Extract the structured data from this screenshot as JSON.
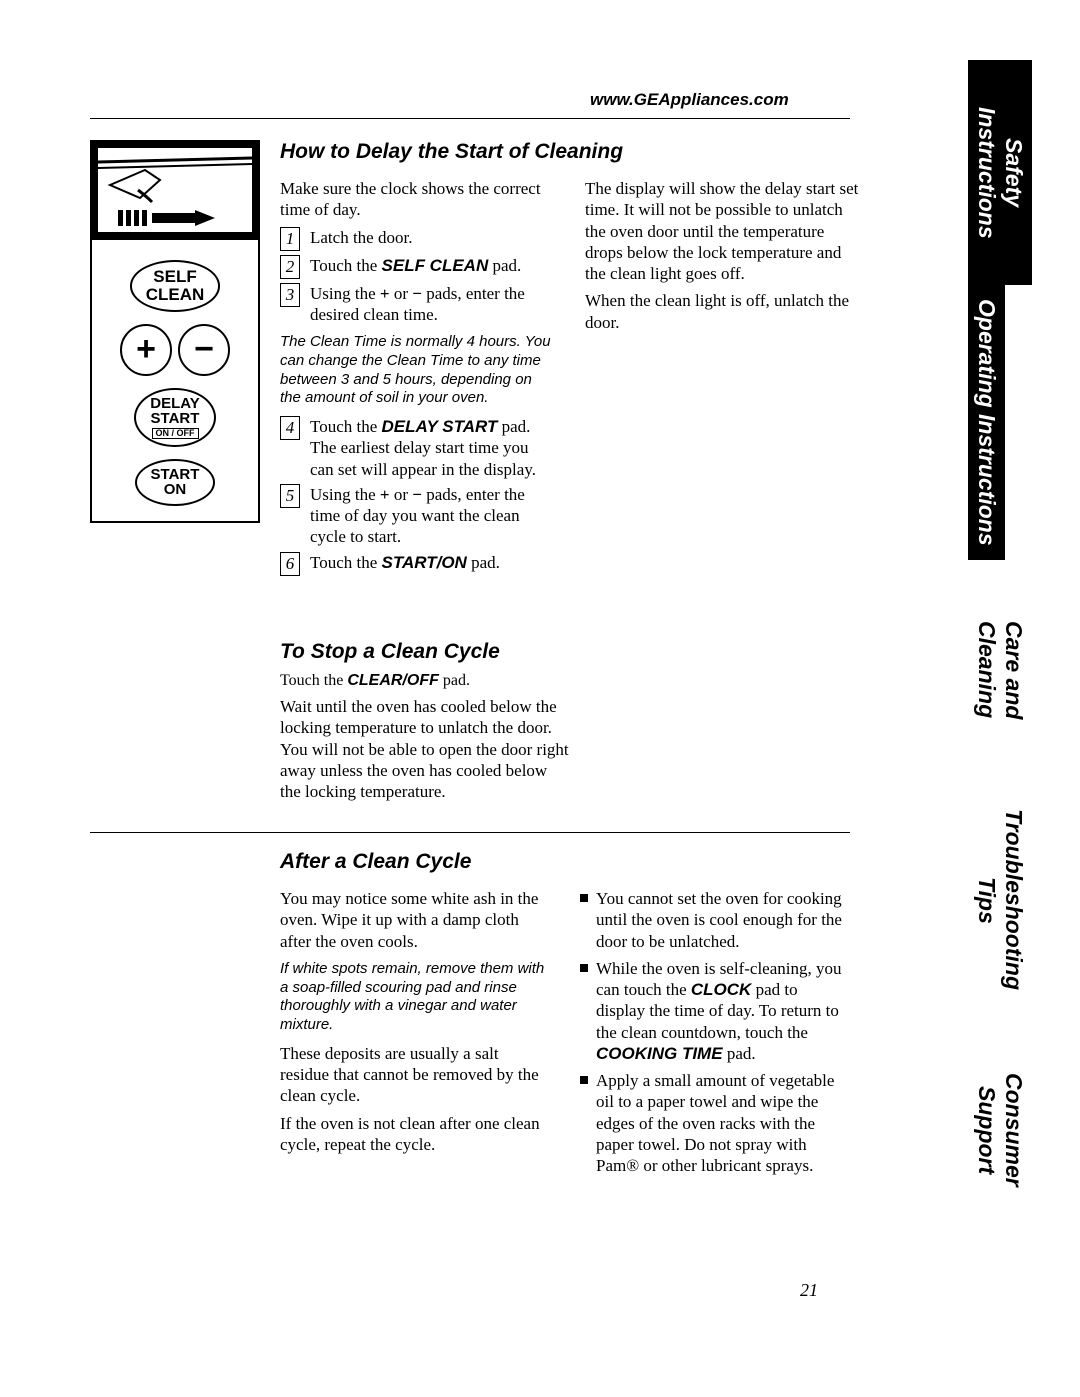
{
  "url": "www.GEAppliances.com",
  "page_number": "21",
  "tabs": {
    "t1": "Safety Instructions",
    "t2": "Operating Instructions",
    "t3": "Care and Cleaning",
    "t4": "Troubleshooting Tips",
    "t5": "Consumer Support"
  },
  "illus": {
    "self_clean": "SELF\nCLEAN",
    "plus": "+",
    "minus": "−",
    "delay_start": "DELAY\nSTART",
    "on_off": "ON / OFF",
    "start_on": "START\nON"
  },
  "s1": {
    "title": "How to Delay the Start of Cleaning",
    "intro": "Make sure the clock shows the correct time of day.",
    "step1": "Latch the door.",
    "step2a": "Touch the ",
    "step2b": "SELF CLEAN",
    "step2c": " pad.",
    "step3a": "Using the ",
    "step3b": "+",
    "step3c": " or ",
    "step3d": "−",
    "step3e": " pads, enter the desired clean time.",
    "note": "The Clean Time is normally 4 hours. You can change the Clean Time to any time between 3 and 5 hours, depending on the amount of soil in your oven.",
    "step4a": "Touch the ",
    "step4b": "DELAY START",
    "step4c": " pad. The earliest delay start time you can set will appear in the display.",
    "step5a": "Using the ",
    "step5b": "+",
    "step5c": " or ",
    "step5d": "−",
    "step5e": " pads, enter the time of day you want the clean cycle to start.",
    "step6a": "Touch the ",
    "step6b": "START/ON",
    "step6c": " pad.",
    "right_p1": "The display will show the delay start set time. It will not be possible to unlatch the oven door until the temperature drops below the lock temperature and the clean light goes off.",
    "right_p2": "When the clean light is off, unlatch the door."
  },
  "s2": {
    "title": "To Stop a Clean Cycle",
    "p1a": "Touch the ",
    "p1b": "CLEAR/OFF",
    "p1c": " pad.",
    "p2": "Wait until the oven has cooled below the locking temperature to unlatch the door. You will not be able to open the door right away unless the oven has cooled below the locking temperature."
  },
  "s3": {
    "title": "After a Clean Cycle",
    "left_p1": "You may notice some white ash in the oven. Wipe it up with a damp cloth after the oven cools.",
    "left_note": "If white spots remain, remove them with a soap-filled scouring pad and rinse thoroughly with a vinegar and water mixture.",
    "left_p2": "These deposits are usually a salt residue that cannot be removed by the clean cycle.",
    "left_p3": "If the oven is not clean after one clean cycle, repeat the cycle.",
    "b1": "You cannot set the oven for cooking until the oven is cool enough for the door to be unlatched.",
    "b2a": "While the oven is self-cleaning, you can touch the ",
    "b2b": "CLOCK",
    "b2c": " pad to display the time of day. To return to the clean countdown, touch the ",
    "b2d": "COOKING TIME",
    "b2e": " pad.",
    "b3": "Apply a small amount of vegetable oil to a paper towel and wipe the edges of the oven racks with the paper towel. Do not spray with Pam® or other lubricant sprays."
  },
  "nums": {
    "n1": "1",
    "n2": "2",
    "n3": "3",
    "n4": "4",
    "n5": "5",
    "n6": "6"
  }
}
